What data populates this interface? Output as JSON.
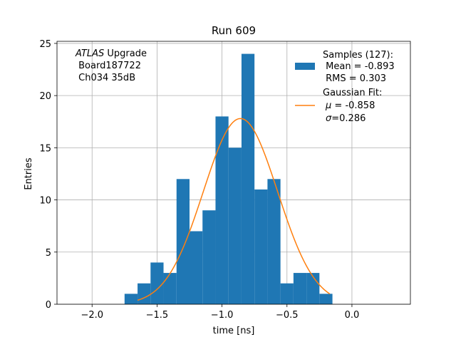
{
  "chart_data": {
    "type": "bar",
    "title": "Run 609",
    "xlabel": "time [ns]",
    "ylabel": "Entries",
    "xlim": [
      -2.27,
      0.45
    ],
    "ylim": [
      0,
      25.2
    ],
    "grid": true,
    "x_ticks": [
      -2.0,
      -1.5,
      -1.0,
      -0.5,
      0.0
    ],
    "x_tick_labels": [
      "−2.0",
      "−1.5",
      "−1.0",
      "−0.5",
      "0.0"
    ],
    "y_ticks": [
      0,
      5,
      10,
      15,
      20,
      25
    ],
    "y_tick_labels": [
      "0",
      "5",
      "10",
      "15",
      "20",
      "25"
    ],
    "annotation": {
      "line1_italic": "ATLAS",
      "line1_rest": " Upgrade",
      "line2": " Board187722",
      "line3": " Ch034 35dB"
    },
    "histogram": {
      "name": "Samples (127):",
      "color": "#1f77b4",
      "bin_edges": [
        -1.75,
        -1.65,
        -1.55,
        -1.45,
        -1.35,
        -1.25,
        -1.15,
        -1.05,
        -0.95,
        -0.85,
        -0.75,
        -0.65,
        -0.55,
        -0.45,
        -0.35,
        -0.25,
        -0.15,
        -0.05
      ],
      "counts": [
        1,
        2,
        4,
        3,
        12,
        7,
        9,
        18,
        15,
        24,
        11,
        12,
        2,
        3,
        3,
        1,
        0
      ]
    },
    "fit": {
      "name": "Gaussian Fit:",
      "color": "#ff7f0e",
      "type": "gaussian",
      "mu": -0.858,
      "sigma": 0.286,
      "amplitude": 17.8,
      "x_range": [
        -1.65,
        -0.17
      ]
    },
    "legend": {
      "placement": "top-right",
      "samples_title": "Samples (127):",
      "samples_mean": " Mean = -0.893",
      "samples_rms": " RMS = 0.303",
      "fit_title": "Gaussian Fit:",
      "fit_mu_symbol": "μ",
      "fit_mu_value": " = -0.858",
      "fit_sigma_symbol": "σ",
      "fit_sigma_value": "=0.286"
    }
  }
}
